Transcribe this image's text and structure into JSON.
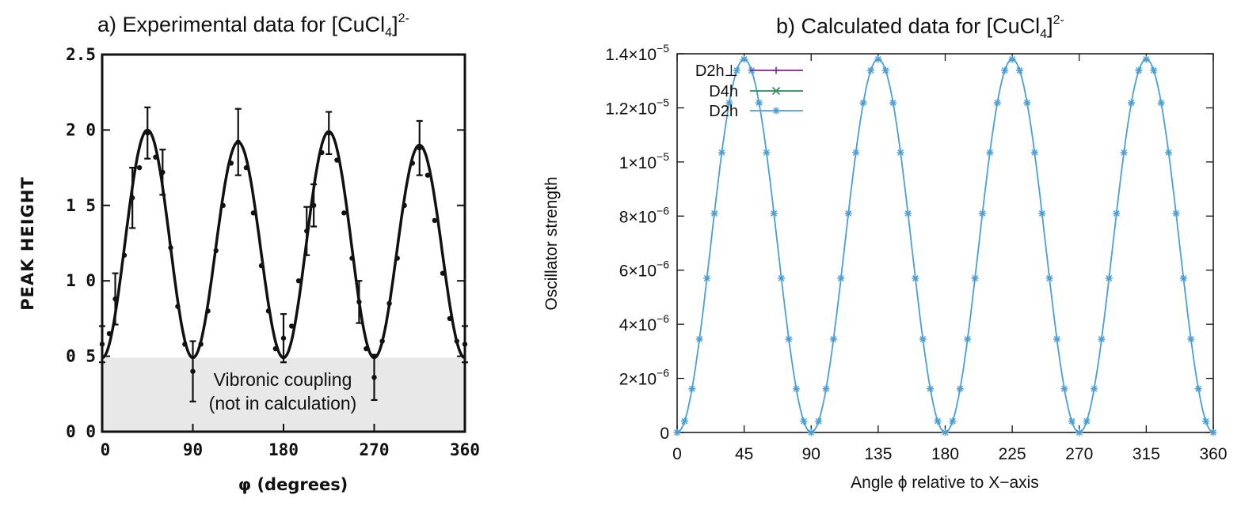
{
  "chart_data": [
    {
      "type": "line",
      "title": "a) Experimental data for [CuCl4]2-",
      "title_parts": {
        "prefix": "a) Experimental data for [CuCl",
        "sub": "4",
        "mid": "]",
        "sup": "2-"
      },
      "xlabel": "φ (degrees)",
      "ylabel": "PEAK HEIGHT",
      "xlim": [
        0,
        360
      ],
      "ylim": [
        0,
        2.5
      ],
      "x_ticks": [
        0,
        90,
        180,
        270,
        360
      ],
      "x_tick_labels": [
        "0",
        "90",
        "180",
        "270",
        "360"
      ],
      "y_ticks": [
        0,
        0.5,
        1.0,
        1.5,
        2.0,
        2.5
      ],
      "y_tick_labels": [
        "0 0",
        "0 5",
        "1 0",
        "1 5",
        "2 0",
        "2.5"
      ],
      "shaded_region": {
        "y_from": 0,
        "y_to": 0.49,
        "x_from": 0,
        "x_to": 360
      },
      "annotation": [
        "Vibronic coupling",
        "(not in calculation)"
      ],
      "fit_curve": {
        "baseline": 0.49,
        "peaks": [
          2.0,
          1.92,
          1.99,
          1.9
        ]
      },
      "points": [
        {
          "x": 0,
          "y": 0.58,
          "err": 0.12
        },
        {
          "x": 7,
          "y": 0.65,
          "err": 0.0
        },
        {
          "x": 13,
          "y": 0.88,
          "err": 0.17
        },
        {
          "x": 22,
          "y": 1.17,
          "err": 0.0
        },
        {
          "x": 30,
          "y": 1.55,
          "err": 0.2
        },
        {
          "x": 37,
          "y": 1.75,
          "err": 0.0
        },
        {
          "x": 45,
          "y": 1.98,
          "err": 0.17
        },
        {
          "x": 53,
          "y": 1.82,
          "err": 0.0
        },
        {
          "x": 60,
          "y": 1.72,
          "err": 0.15
        },
        {
          "x": 68,
          "y": 1.22,
          "err": 0.0
        },
        {
          "x": 75,
          "y": 0.83,
          "err": 0.0
        },
        {
          "x": 82,
          "y": 0.58,
          "err": 0.0
        },
        {
          "x": 90,
          "y": 0.4,
          "err": 0.2
        },
        {
          "x": 98,
          "y": 0.58,
          "err": 0.0
        },
        {
          "x": 105,
          "y": 0.8,
          "err": 0.0
        },
        {
          "x": 113,
          "y": 1.2,
          "err": 0.0
        },
        {
          "x": 120,
          "y": 1.5,
          "err": 0.0
        },
        {
          "x": 128,
          "y": 1.78,
          "err": 0.0
        },
        {
          "x": 135,
          "y": 1.92,
          "err": 0.22
        },
        {
          "x": 143,
          "y": 1.75,
          "err": 0.0
        },
        {
          "x": 150,
          "y": 1.45,
          "err": 0.0
        },
        {
          "x": 158,
          "y": 1.1,
          "err": 0.0
        },
        {
          "x": 165,
          "y": 0.8,
          "err": 0.0
        },
        {
          "x": 172,
          "y": 0.55,
          "err": 0.0
        },
        {
          "x": 180,
          "y": 0.62,
          "err": 0.16
        },
        {
          "x": 188,
          "y": 0.7,
          "err": 0.0
        },
        {
          "x": 195,
          "y": 1.0,
          "err": 0.0
        },
        {
          "x": 203,
          "y": 1.33,
          "err": 0.16
        },
        {
          "x": 210,
          "y": 1.5,
          "err": 0.14
        },
        {
          "x": 218,
          "y": 1.85,
          "err": 0.0
        },
        {
          "x": 225,
          "y": 1.98,
          "err": 0.14
        },
        {
          "x": 233,
          "y": 1.8,
          "err": 0.0
        },
        {
          "x": 240,
          "y": 1.45,
          "err": 0.0
        },
        {
          "x": 248,
          "y": 1.15,
          "err": 0.0
        },
        {
          "x": 255,
          "y": 0.86,
          "err": 0.14
        },
        {
          "x": 262,
          "y": 0.55,
          "err": 0.0
        },
        {
          "x": 270,
          "y": 0.36,
          "err": 0.15
        },
        {
          "x": 278,
          "y": 0.6,
          "err": 0.0
        },
        {
          "x": 285,
          "y": 0.85,
          "err": 0.0
        },
        {
          "x": 293,
          "y": 1.15,
          "err": 0.0
        },
        {
          "x": 300,
          "y": 1.5,
          "err": 0.0
        },
        {
          "x": 308,
          "y": 1.78,
          "err": 0.0
        },
        {
          "x": 315,
          "y": 1.88,
          "err": 0.18
        },
        {
          "x": 323,
          "y": 1.7,
          "err": 0.0
        },
        {
          "x": 330,
          "y": 1.4,
          "err": 0.0
        },
        {
          "x": 338,
          "y": 1.05,
          "err": 0.0
        },
        {
          "x": 345,
          "y": 0.75,
          "err": 0.0
        },
        {
          "x": 352,
          "y": 0.6,
          "err": 0.0
        },
        {
          "x": 360,
          "y": 0.58,
          "err": 0.12
        }
      ]
    },
    {
      "type": "line",
      "title": "b) Calculated data for [CuCl4]2-",
      "title_parts": {
        "prefix": "b) Calculated data for [CuCl",
        "sub": "4",
        "mid": "]",
        "sup": "2-"
      },
      "xlabel": "Angle ϕ relative to X−axis",
      "ylabel": "Oscillator strength",
      "xlim": [
        0,
        360
      ],
      "ylim": [
        0,
        1.4e-05
      ],
      "x_ticks": [
        0,
        45,
        90,
        135,
        180,
        225,
        270,
        315,
        360
      ],
      "x_tick_labels": [
        "0",
        "45",
        "90",
        "135",
        "180",
        "225",
        "270",
        "315",
        "360"
      ],
      "y_ticks": [
        0,
        2e-06,
        4e-06,
        6e-06,
        8e-06,
        1e-05,
        1.2e-05,
        1.4e-05
      ],
      "y_tick_labels": [
        {
          "base": "0",
          "exp": ""
        },
        {
          "base": "2×10",
          "exp": "−6"
        },
        {
          "base": "4×10",
          "exp": "−6"
        },
        {
          "base": "6×10",
          "exp": "−6"
        },
        {
          "base": "8×10",
          "exp": "−6"
        },
        {
          "base": "1×10",
          "exp": "−5"
        },
        {
          "base": "1.2×10",
          "exp": "−5"
        },
        {
          "base": "1.4×10",
          "exp": "−5"
        }
      ],
      "legend_position": "top-left",
      "series": [
        {
          "name": "D2h⊥",
          "color": "#8b1f9b",
          "marker": "+"
        },
        {
          "name": "D4h",
          "color": "#2e8b57",
          "marker": "x"
        },
        {
          "name": "D2h",
          "color": "#4a9fd6",
          "marker": "*",
          "formula": "1.38e-5 * sin(2*phi)^2",
          "x_step": 5
        }
      ]
    }
  ],
  "colors": {
    "shade": "#e8e8e8",
    "calc_line": "#4a9fd6",
    "ink": "#111111"
  }
}
